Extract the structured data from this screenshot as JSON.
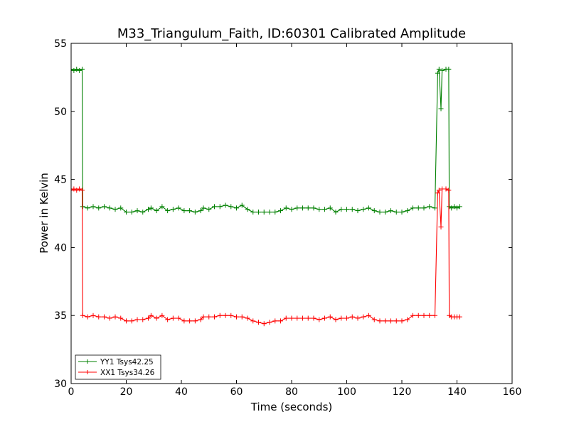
{
  "chart_data": {
    "type": "line",
    "title": "M33_Triangulum_Faith, ID:60301 Calibrated Amplitude",
    "xlabel": "Time (seconds)",
    "ylabel": "Power in Kelvin",
    "xlim": [
      0,
      160
    ],
    "ylim": [
      30,
      55
    ],
    "xticks": [
      0,
      20,
      40,
      60,
      80,
      100,
      120,
      140,
      160
    ],
    "yticks": [
      30,
      35,
      40,
      45,
      50,
      55
    ],
    "grid": false,
    "legend_position": "lower-left",
    "series": [
      {
        "name": "YY1 Tsys42.25",
        "color": "#008000",
        "marker": "plus",
        "points": [
          [
            0,
            53.1
          ],
          [
            1,
            53.0
          ],
          [
            2,
            53.1
          ],
          [
            3,
            53.0
          ],
          [
            4,
            53.1
          ],
          [
            4.2,
            43.0
          ],
          [
            6,
            42.9
          ],
          [
            8,
            43.0
          ],
          [
            10,
            42.9
          ],
          [
            12,
            43.0
          ],
          [
            14,
            42.9
          ],
          [
            16,
            42.8
          ],
          [
            18,
            42.9
          ],
          [
            20,
            42.6
          ],
          [
            22,
            42.6
          ],
          [
            24,
            42.7
          ],
          [
            26,
            42.6
          ],
          [
            28,
            42.8
          ],
          [
            29,
            42.9
          ],
          [
            31,
            42.7
          ],
          [
            33,
            43.0
          ],
          [
            35,
            42.7
          ],
          [
            37,
            42.8
          ],
          [
            39,
            42.9
          ],
          [
            41,
            42.7
          ],
          [
            43,
            42.7
          ],
          [
            45,
            42.6
          ],
          [
            47,
            42.7
          ],
          [
            48,
            42.9
          ],
          [
            50,
            42.8
          ],
          [
            52,
            43.0
          ],
          [
            54,
            43.0
          ],
          [
            56,
            43.1
          ],
          [
            58,
            43.0
          ],
          [
            60,
            42.9
          ],
          [
            62,
            43.1
          ],
          [
            64,
            42.8
          ],
          [
            66,
            42.6
          ],
          [
            68,
            42.6
          ],
          [
            70,
            42.6
          ],
          [
            72,
            42.6
          ],
          [
            74,
            42.6
          ],
          [
            76,
            42.7
          ],
          [
            78,
            42.9
          ],
          [
            80,
            42.8
          ],
          [
            82,
            42.9
          ],
          [
            84,
            42.9
          ],
          [
            86,
            42.9
          ],
          [
            88,
            42.9
          ],
          [
            90,
            42.8
          ],
          [
            92,
            42.8
          ],
          [
            94,
            42.9
          ],
          [
            96,
            42.6
          ],
          [
            98,
            42.8
          ],
          [
            100,
            42.8
          ],
          [
            102,
            42.8
          ],
          [
            104,
            42.7
          ],
          [
            106,
            42.8
          ],
          [
            108,
            42.9
          ],
          [
            110,
            42.7
          ],
          [
            112,
            42.6
          ],
          [
            114,
            42.6
          ],
          [
            116,
            42.7
          ],
          [
            118,
            42.6
          ],
          [
            120,
            42.6
          ],
          [
            122,
            42.7
          ],
          [
            124,
            42.9
          ],
          [
            126,
            42.9
          ],
          [
            128,
            42.9
          ],
          [
            130,
            43.0
          ],
          [
            132,
            42.9
          ],
          [
            133,
            52.8
          ],
          [
            133.5,
            53.1
          ],
          [
            134.2,
            50.2
          ],
          [
            134.6,
            53.0
          ],
          [
            136,
            53.1
          ],
          [
            137,
            53.1
          ],
          [
            137.2,
            43.0
          ],
          [
            138,
            42.9
          ],
          [
            139,
            43.0
          ],
          [
            140,
            42.9
          ],
          [
            141,
            43.0
          ]
        ]
      },
      {
        "name": "XX1 Tsys34.26",
        "color": "#ff0000",
        "marker": "plus",
        "points": [
          [
            0,
            44.2
          ],
          [
            1,
            44.3
          ],
          [
            2,
            44.2
          ],
          [
            3,
            44.3
          ],
          [
            4,
            44.2
          ],
          [
            4.2,
            35.0
          ],
          [
            6,
            34.9
          ],
          [
            8,
            35.0
          ],
          [
            10,
            34.9
          ],
          [
            12,
            34.9
          ],
          [
            14,
            34.8
          ],
          [
            16,
            34.9
          ],
          [
            18,
            34.8
          ],
          [
            20,
            34.6
          ],
          [
            22,
            34.6
          ],
          [
            24,
            34.7
          ],
          [
            26,
            34.7
          ],
          [
            28,
            34.8
          ],
          [
            29,
            35.0
          ],
          [
            31,
            34.8
          ],
          [
            33,
            35.0
          ],
          [
            35,
            34.7
          ],
          [
            37,
            34.8
          ],
          [
            39,
            34.8
          ],
          [
            41,
            34.6
          ],
          [
            43,
            34.6
          ],
          [
            45,
            34.6
          ],
          [
            47,
            34.7
          ],
          [
            48,
            34.9
          ],
          [
            50,
            34.9
          ],
          [
            52,
            34.9
          ],
          [
            54,
            35.0
          ],
          [
            56,
            35.0
          ],
          [
            58,
            35.0
          ],
          [
            60,
            34.9
          ],
          [
            62,
            34.9
          ],
          [
            64,
            34.8
          ],
          [
            66,
            34.6
          ],
          [
            68,
            34.5
          ],
          [
            70,
            34.4
          ],
          [
            72,
            34.5
          ],
          [
            74,
            34.6
          ],
          [
            76,
            34.6
          ],
          [
            78,
            34.8
          ],
          [
            80,
            34.8
          ],
          [
            82,
            34.8
          ],
          [
            84,
            34.8
          ],
          [
            86,
            34.8
          ],
          [
            88,
            34.8
          ],
          [
            90,
            34.7
          ],
          [
            92,
            34.8
          ],
          [
            94,
            34.9
          ],
          [
            96,
            34.7
          ],
          [
            98,
            34.8
          ],
          [
            100,
            34.8
          ],
          [
            102,
            34.9
          ],
          [
            104,
            34.8
          ],
          [
            106,
            34.9
          ],
          [
            108,
            35.0
          ],
          [
            110,
            34.7
          ],
          [
            112,
            34.6
          ],
          [
            114,
            34.6
          ],
          [
            116,
            34.6
          ],
          [
            118,
            34.6
          ],
          [
            120,
            34.6
          ],
          [
            122,
            34.7
          ],
          [
            124,
            35.0
          ],
          [
            126,
            35.0
          ],
          [
            128,
            35.0
          ],
          [
            130,
            35.0
          ],
          [
            132,
            35.0
          ],
          [
            133,
            44.0
          ],
          [
            133.5,
            44.2
          ],
          [
            134.2,
            41.5
          ],
          [
            134.6,
            44.3
          ],
          [
            136,
            44.3
          ],
          [
            137,
            44.2
          ],
          [
            137.2,
            35.0
          ],
          [
            138,
            34.9
          ],
          [
            139,
            34.9
          ],
          [
            140,
            34.9
          ],
          [
            141,
            34.9
          ]
        ]
      }
    ]
  }
}
